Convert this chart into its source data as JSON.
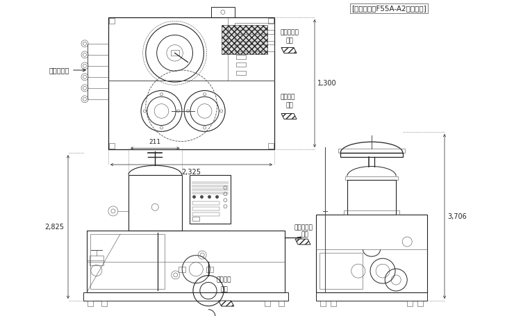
{
  "bg_color": "#ffffff",
  "lc": "#4a4a4a",
  "lc2": "#222222",
  "title_note": "[外形寸法はF55A-A2の例です]",
  "dim_2325": "2,325",
  "dim_1300": "1,300",
  "dim_211": "211",
  "dim_2825": "2,825",
  "dim_3706": "3,706",
  "label_keiso": "計装エアー",
  "label_filtrate": "（ろ過液）\n出口",
  "label_raw": "（原液）\n入口",
  "fs": 6.5,
  "fs_dim": 7.0,
  "fs_title": 7.5,
  "lw_main": 0.7,
  "lw_thin": 0.4,
  "lw_dim": 0.5
}
